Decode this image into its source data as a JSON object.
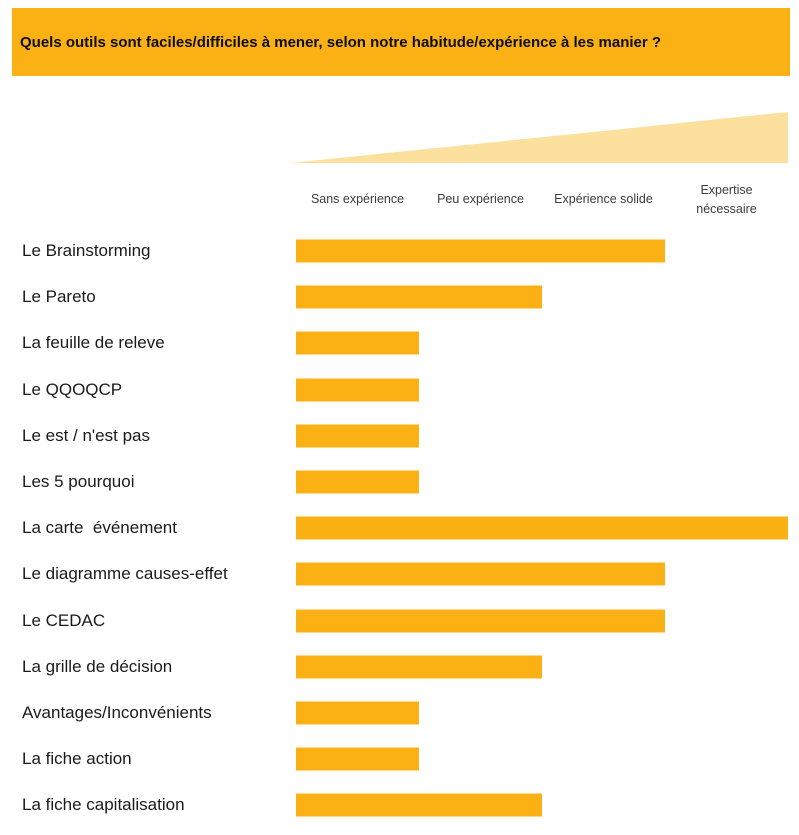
{
  "title": {
    "text": "Quels outils sont faciles/difficiles à mener, selon notre habitude/expérience à les manier ?"
  },
  "colors": {
    "accent_orange": "#fbb013",
    "wedge_yellow": "#fce19e",
    "label_text": "#1a1a1a",
    "header_text": "#3d3d3d"
  },
  "axis": {
    "scale_labels": [
      "Sans expérience",
      "Peu expérience",
      "Expérience solide",
      "Expertise\nnécessaire"
    ]
  },
  "chart_data": {
    "type": "bar",
    "orientation": "horizontal",
    "title": "Quels outils sont faciles/difficiles à mener, selon notre habitude/expérience à les manier ?",
    "xlabel": "",
    "ylabel": "",
    "x_scale_labels": [
      "Sans expérience",
      "Peu expérience",
      "Expérience solide",
      "Expertise nécessaire"
    ],
    "xlim": [
      0,
      4
    ],
    "grid": false,
    "legend": false,
    "categories": [
      "Le Brainstorming",
      "Le Pareto",
      "La feuille de releve",
      "Le QQOQCP",
      "Le est / n'est pas",
      "Les 5 pourquoi",
      "La carte  événement",
      "Le diagramme causes-effet",
      "Le CEDAC",
      "La grille de décision",
      "Avantages/Inconvénients",
      "La fiche action",
      "La fiche capitalisation"
    ],
    "values": [
      3,
      2,
      1,
      1,
      1,
      1,
      4,
      3,
      3,
      2,
      1,
      1,
      2
    ]
  }
}
